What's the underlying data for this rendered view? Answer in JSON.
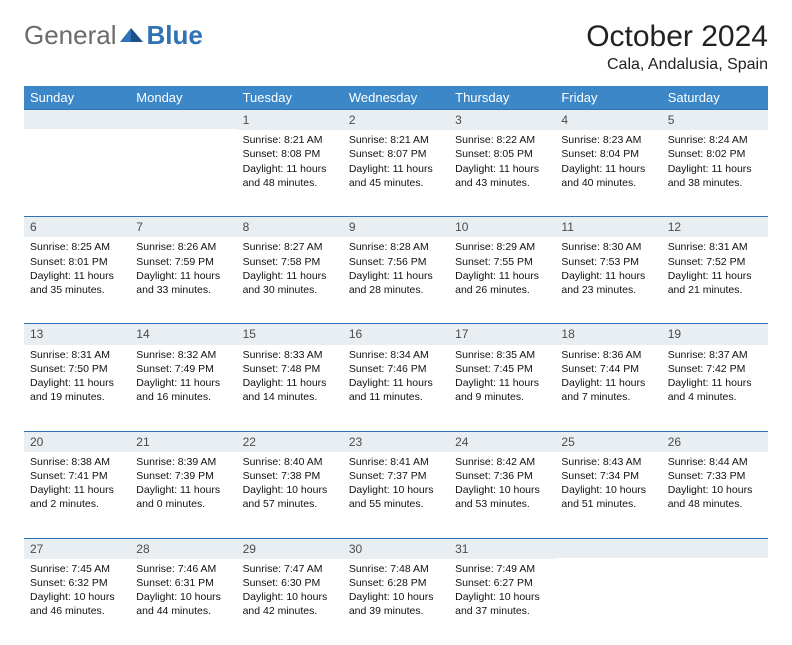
{
  "logo": {
    "text1": "General",
    "text2": "Blue"
  },
  "title": "October 2024",
  "location": "Cala, Andalusia, Spain",
  "colors": {
    "header_bg": "#3b87c8",
    "header_text": "#ffffff",
    "daynum_bg": "#e9eef2",
    "daynum_border": "#2f72b5",
    "body_bg": "#ffffff"
  },
  "day_headers": [
    "Sunday",
    "Monday",
    "Tuesday",
    "Wednesday",
    "Thursday",
    "Friday",
    "Saturday"
  ],
  "weeks": [
    [
      null,
      null,
      {
        "n": "1",
        "sunrise": "8:21 AM",
        "sunset": "8:08 PM",
        "daylight": "11 hours and 48 minutes."
      },
      {
        "n": "2",
        "sunrise": "8:21 AM",
        "sunset": "8:07 PM",
        "daylight": "11 hours and 45 minutes."
      },
      {
        "n": "3",
        "sunrise": "8:22 AM",
        "sunset": "8:05 PM",
        "daylight": "11 hours and 43 minutes."
      },
      {
        "n": "4",
        "sunrise": "8:23 AM",
        "sunset": "8:04 PM",
        "daylight": "11 hours and 40 minutes."
      },
      {
        "n": "5",
        "sunrise": "8:24 AM",
        "sunset": "8:02 PM",
        "daylight": "11 hours and 38 minutes."
      }
    ],
    [
      {
        "n": "6",
        "sunrise": "8:25 AM",
        "sunset": "8:01 PM",
        "daylight": "11 hours and 35 minutes."
      },
      {
        "n": "7",
        "sunrise": "8:26 AM",
        "sunset": "7:59 PM",
        "daylight": "11 hours and 33 minutes."
      },
      {
        "n": "8",
        "sunrise": "8:27 AM",
        "sunset": "7:58 PM",
        "daylight": "11 hours and 30 minutes."
      },
      {
        "n": "9",
        "sunrise": "8:28 AM",
        "sunset": "7:56 PM",
        "daylight": "11 hours and 28 minutes."
      },
      {
        "n": "10",
        "sunrise": "8:29 AM",
        "sunset": "7:55 PM",
        "daylight": "11 hours and 26 minutes."
      },
      {
        "n": "11",
        "sunrise": "8:30 AM",
        "sunset": "7:53 PM",
        "daylight": "11 hours and 23 minutes."
      },
      {
        "n": "12",
        "sunrise": "8:31 AM",
        "sunset": "7:52 PM",
        "daylight": "11 hours and 21 minutes."
      }
    ],
    [
      {
        "n": "13",
        "sunrise": "8:31 AM",
        "sunset": "7:50 PM",
        "daylight": "11 hours and 19 minutes."
      },
      {
        "n": "14",
        "sunrise": "8:32 AM",
        "sunset": "7:49 PM",
        "daylight": "11 hours and 16 minutes."
      },
      {
        "n": "15",
        "sunrise": "8:33 AM",
        "sunset": "7:48 PM",
        "daylight": "11 hours and 14 minutes."
      },
      {
        "n": "16",
        "sunrise": "8:34 AM",
        "sunset": "7:46 PM",
        "daylight": "11 hours and 11 minutes."
      },
      {
        "n": "17",
        "sunrise": "8:35 AM",
        "sunset": "7:45 PM",
        "daylight": "11 hours and 9 minutes."
      },
      {
        "n": "18",
        "sunrise": "8:36 AM",
        "sunset": "7:44 PM",
        "daylight": "11 hours and 7 minutes."
      },
      {
        "n": "19",
        "sunrise": "8:37 AM",
        "sunset": "7:42 PM",
        "daylight": "11 hours and 4 minutes."
      }
    ],
    [
      {
        "n": "20",
        "sunrise": "8:38 AM",
        "sunset": "7:41 PM",
        "daylight": "11 hours and 2 minutes."
      },
      {
        "n": "21",
        "sunrise": "8:39 AM",
        "sunset": "7:39 PM",
        "daylight": "11 hours and 0 minutes."
      },
      {
        "n": "22",
        "sunrise": "8:40 AM",
        "sunset": "7:38 PM",
        "daylight": "10 hours and 57 minutes."
      },
      {
        "n": "23",
        "sunrise": "8:41 AM",
        "sunset": "7:37 PM",
        "daylight": "10 hours and 55 minutes."
      },
      {
        "n": "24",
        "sunrise": "8:42 AM",
        "sunset": "7:36 PM",
        "daylight": "10 hours and 53 minutes."
      },
      {
        "n": "25",
        "sunrise": "8:43 AM",
        "sunset": "7:34 PM",
        "daylight": "10 hours and 51 minutes."
      },
      {
        "n": "26",
        "sunrise": "8:44 AM",
        "sunset": "7:33 PM",
        "daylight": "10 hours and 48 minutes."
      }
    ],
    [
      {
        "n": "27",
        "sunrise": "7:45 AM",
        "sunset": "6:32 PM",
        "daylight": "10 hours and 46 minutes."
      },
      {
        "n": "28",
        "sunrise": "7:46 AM",
        "sunset": "6:31 PM",
        "daylight": "10 hours and 44 minutes."
      },
      {
        "n": "29",
        "sunrise": "7:47 AM",
        "sunset": "6:30 PM",
        "daylight": "10 hours and 42 minutes."
      },
      {
        "n": "30",
        "sunrise": "7:48 AM",
        "sunset": "6:28 PM",
        "daylight": "10 hours and 39 minutes."
      },
      {
        "n": "31",
        "sunrise": "7:49 AM",
        "sunset": "6:27 PM",
        "daylight": "10 hours and 37 minutes."
      },
      null,
      null
    ]
  ],
  "labels": {
    "sunrise": "Sunrise:",
    "sunset": "Sunset:",
    "daylight": "Daylight:"
  }
}
